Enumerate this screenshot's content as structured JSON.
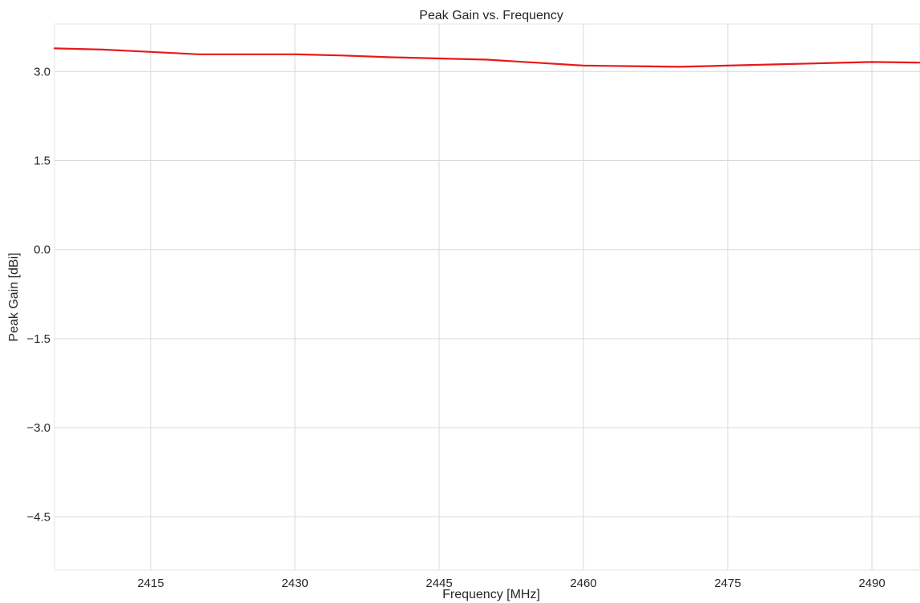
{
  "chart_data": {
    "type": "line",
    "title": "Peak Gain vs. Frequency",
    "xlabel": "Frequency [MHz]",
    "ylabel": "Peak Gain [dBi]",
    "xlim": [
      2405,
      2495
    ],
    "ylim": [
      -5.4,
      3.8
    ],
    "xticks": [
      2415,
      2430,
      2445,
      2460,
      2475,
      2490
    ],
    "yticks": [
      3.0,
      1.5,
      0.0,
      -1.5,
      -3.0,
      -4.5
    ],
    "xtick_labels": [
      "2415",
      "2430",
      "2445",
      "2460",
      "2475",
      "2490"
    ],
    "ytick_labels": [
      "3.0",
      "1.5",
      "0.0",
      "−1.5",
      "−3.0",
      "−4.5"
    ],
    "grid": true,
    "series": [
      {
        "color": "#e8191a",
        "x": [
          2405,
          2410,
          2415,
          2420,
          2425,
          2430,
          2435,
          2440,
          2445,
          2450,
          2455,
          2460,
          2465,
          2470,
          2475,
          2480,
          2485,
          2490,
          2495
        ],
        "y": [
          3.39,
          3.37,
          3.33,
          3.29,
          3.29,
          3.29,
          3.27,
          3.24,
          3.22,
          3.2,
          3.15,
          3.1,
          3.09,
          3.08,
          3.1,
          3.12,
          3.14,
          3.16,
          3.15
        ]
      }
    ]
  }
}
